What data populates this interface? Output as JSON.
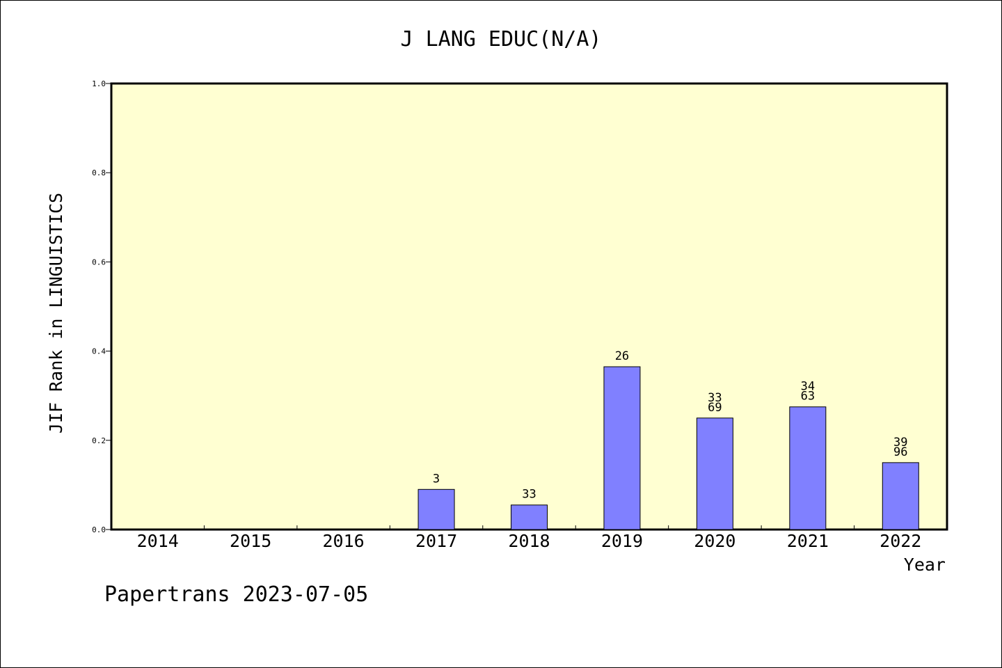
{
  "chart_data": {
    "type": "bar",
    "title": "J LANG EDUC(N/A)",
    "xlabel": "Year",
    "ylabel": "JIF Rank in LINGUISTICS",
    "ylim": [
      0,
      1.0
    ],
    "yticks": [
      "0.0",
      "0.2",
      "0.4",
      "0.6",
      "0.8",
      "1.0"
    ],
    "ytick_values": [
      0,
      0.2,
      0.4,
      0.6,
      0.8,
      1.0
    ],
    "categories": [
      "2014",
      "2015",
      "2016",
      "2017",
      "2018",
      "2019",
      "2020",
      "2021",
      "2022"
    ],
    "values": [
      null,
      null,
      null,
      0.09,
      0.055,
      0.365,
      0.25,
      0.275,
      0.15
    ],
    "labels": [
      [],
      [],
      [],
      [
        "3"
      ],
      [
        "33"
      ],
      [
        "26"
      ],
      [
        "33",
        "69"
      ],
      [
        "34",
        "63"
      ],
      [
        "39",
        "96"
      ]
    ],
    "grid": false,
    "colors": {
      "plot_background": "#ffffd2",
      "bar_fill": "#8080ff",
      "bar_stroke": "#000000"
    }
  },
  "footer": "Papertrans 2023-07-05"
}
